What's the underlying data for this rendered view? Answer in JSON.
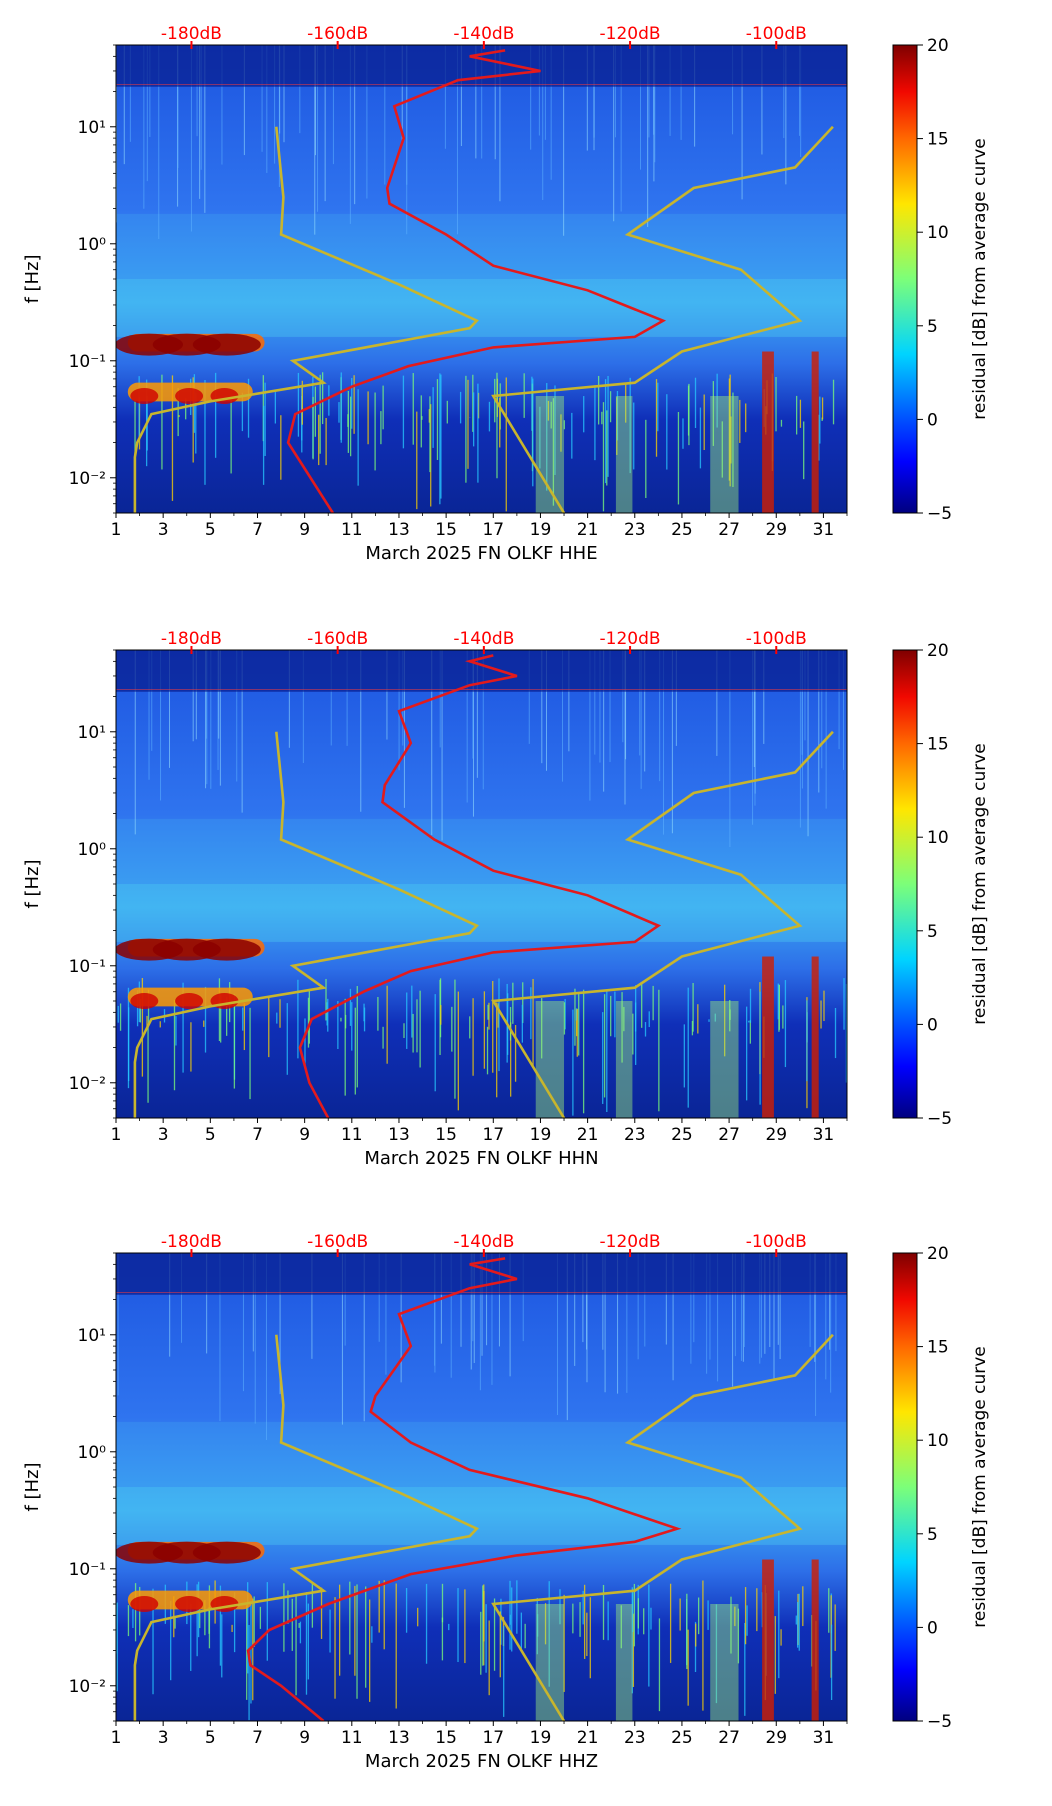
{
  "colors": {
    "spectro_bg": "#1f4fd8",
    "noise_model": "#c8b52d",
    "psd_curve": "#e31a1c",
    "top_axis_text": "#ff0000",
    "axis_text": "#000000"
  },
  "chart_data": [
    {
      "type": "heatmap",
      "channel": "HHE",
      "xlabel": "March 2025 FN OLKF  HHE",
      "ylabel": "f [Hz]",
      "xticks": [
        "1",
        "3",
        "5",
        "7",
        "9",
        "11",
        "13",
        "15",
        "17",
        "19",
        "21",
        "23",
        "25",
        "27",
        "29",
        "31"
      ],
      "xlim": [
        1,
        32
      ],
      "yticks": [
        {
          "value": 0.01,
          "label": "10⁻²"
        },
        {
          "value": 0.1,
          "label": "10⁻¹"
        },
        {
          "value": 1,
          "label": "10⁰"
        },
        {
          "value": 10,
          "label": "10¹"
        }
      ],
      "ylim": [
        0.005,
        50
      ],
      "top_ticks": [
        {
          "x": 4.2,
          "label": "-180dB"
        },
        {
          "x": 10.4,
          "label": "-160dB"
        },
        {
          "x": 16.6,
          "label": "-140dB"
        },
        {
          "x": 22.8,
          "label": "-120dB"
        },
        {
          "x": 29.0,
          "label": "-100dB"
        }
      ],
      "colorbar": {
        "label": "residual [dB] from average curve",
        "min": -5,
        "max": 20,
        "ticks": [
          "-5",
          "0",
          "5",
          "10",
          "15",
          "20"
        ]
      },
      "noise_model_low": [
        [
          1.8,
          0.005
        ],
        [
          1.8,
          0.015
        ],
        [
          1.9,
          0.02
        ],
        [
          2.5,
          0.035
        ],
        [
          5,
          0.045
        ],
        [
          9.8,
          0.065
        ],
        [
          8.5,
          0.1
        ],
        [
          16,
          0.19
        ],
        [
          16.3,
          0.22
        ],
        [
          13,
          0.45
        ],
        [
          8,
          1.2
        ],
        [
          8.1,
          2.5
        ],
        [
          7.8,
          10
        ]
      ],
      "noise_model_high": [
        [
          20,
          0.005
        ],
        [
          17,
          0.05
        ],
        [
          23,
          0.065
        ],
        [
          25,
          0.12
        ],
        [
          30,
          0.22
        ],
        [
          27.5,
          0.6
        ],
        [
          22.7,
          1.2
        ],
        [
          25.5,
          3
        ],
        [
          29.8,
          4.5
        ],
        [
          31.4,
          10
        ]
      ],
      "psd_curve": [
        [
          10.2,
          0.005
        ],
        [
          9,
          0.012
        ],
        [
          8.3,
          0.02
        ],
        [
          8.6,
          0.035
        ],
        [
          11,
          0.06
        ],
        [
          13.4,
          0.09
        ],
        [
          17,
          0.13
        ],
        [
          23,
          0.16
        ],
        [
          24.2,
          0.22
        ],
        [
          21,
          0.4
        ],
        [
          17,
          0.65
        ],
        [
          15,
          1.2
        ],
        [
          12.6,
          2.2
        ],
        [
          12.5,
          3
        ],
        [
          13.2,
          8
        ],
        [
          12.8,
          15
        ],
        [
          15.5,
          25
        ],
        [
          19,
          30
        ],
        [
          16,
          40
        ],
        [
          17.5,
          45
        ]
      ]
    },
    {
      "type": "heatmap",
      "channel": "HHN",
      "xlabel": "March 2025 FN OLKF  HHN",
      "ylabel": "f [Hz]",
      "xticks": [
        "1",
        "3",
        "5",
        "7",
        "9",
        "11",
        "13",
        "15",
        "17",
        "19",
        "21",
        "23",
        "25",
        "27",
        "29",
        "31"
      ],
      "xlim": [
        1,
        32
      ],
      "yticks": [
        {
          "value": 0.01,
          "label": "10⁻²"
        },
        {
          "value": 0.1,
          "label": "10⁻¹"
        },
        {
          "value": 1,
          "label": "10⁰"
        },
        {
          "value": 10,
          "label": "10¹"
        }
      ],
      "ylim": [
        0.005,
        50
      ],
      "top_ticks": [
        {
          "x": 4.2,
          "label": "-180dB"
        },
        {
          "x": 10.4,
          "label": "-160dB"
        },
        {
          "x": 16.6,
          "label": "-140dB"
        },
        {
          "x": 22.8,
          "label": "-120dB"
        },
        {
          "x": 29.0,
          "label": "-100dB"
        }
      ],
      "colorbar": {
        "label": "residual [dB] from average curve",
        "min": -5,
        "max": 20,
        "ticks": [
          "-5",
          "0",
          "5",
          "10",
          "15",
          "20"
        ]
      },
      "noise_model_low": [
        [
          1.8,
          0.005
        ],
        [
          1.8,
          0.015
        ],
        [
          1.9,
          0.02
        ],
        [
          2.5,
          0.035
        ],
        [
          5,
          0.045
        ],
        [
          9.8,
          0.065
        ],
        [
          8.5,
          0.1
        ],
        [
          16,
          0.19
        ],
        [
          16.3,
          0.22
        ],
        [
          13,
          0.45
        ],
        [
          8,
          1.2
        ],
        [
          8.1,
          2.5
        ],
        [
          7.8,
          10
        ]
      ],
      "noise_model_high": [
        [
          20,
          0.005
        ],
        [
          17,
          0.05
        ],
        [
          23,
          0.065
        ],
        [
          25,
          0.12
        ],
        [
          30,
          0.22
        ],
        [
          27.5,
          0.6
        ],
        [
          22.7,
          1.2
        ],
        [
          25.5,
          3
        ],
        [
          29.8,
          4.5
        ],
        [
          31.4,
          10
        ]
      ],
      "psd_curve": [
        [
          10.0,
          0.005
        ],
        [
          9.2,
          0.01
        ],
        [
          8.8,
          0.02
        ],
        [
          9.3,
          0.035
        ],
        [
          11.5,
          0.06
        ],
        [
          13.5,
          0.09
        ],
        [
          17,
          0.13
        ],
        [
          23,
          0.16
        ],
        [
          24.0,
          0.22
        ],
        [
          21,
          0.4
        ],
        [
          17,
          0.65
        ],
        [
          14.5,
          1.2
        ],
        [
          12.3,
          2.5
        ],
        [
          12.4,
          3.5
        ],
        [
          13.5,
          8
        ],
        [
          13,
          15
        ],
        [
          16,
          25
        ],
        [
          18,
          30
        ],
        [
          16,
          40
        ],
        [
          17,
          45
        ]
      ]
    },
    {
      "type": "heatmap",
      "channel": "HHZ",
      "xlabel": "March 2025 FN OLKF  HHZ",
      "ylabel": "f [Hz]",
      "xticks": [
        "1",
        "3",
        "5",
        "7",
        "9",
        "11",
        "13",
        "15",
        "17",
        "19",
        "21",
        "23",
        "25",
        "27",
        "29",
        "31"
      ],
      "xlim": [
        1,
        32
      ],
      "yticks": [
        {
          "value": 0.01,
          "label": "10⁻²"
        },
        {
          "value": 0.1,
          "label": "10⁻¹"
        },
        {
          "value": 1,
          "label": "10⁰"
        },
        {
          "value": 10,
          "label": "10¹"
        }
      ],
      "ylim": [
        0.005,
        50
      ],
      "top_ticks": [
        {
          "x": 4.2,
          "label": "-180dB"
        },
        {
          "x": 10.4,
          "label": "-160dB"
        },
        {
          "x": 16.6,
          "label": "-140dB"
        },
        {
          "x": 22.8,
          "label": "-120dB"
        },
        {
          "x": 29.0,
          "label": "-100dB"
        }
      ],
      "colorbar": {
        "label": "residual [dB] from average curve",
        "min": -5,
        "max": 20,
        "ticks": [
          "-5",
          "0",
          "5",
          "10",
          "15",
          "20"
        ]
      },
      "noise_model_low": [
        [
          1.8,
          0.005
        ],
        [
          1.8,
          0.015
        ],
        [
          1.9,
          0.02
        ],
        [
          2.5,
          0.035
        ],
        [
          5,
          0.045
        ],
        [
          9.8,
          0.065
        ],
        [
          8.5,
          0.1
        ],
        [
          16,
          0.19
        ],
        [
          16.3,
          0.22
        ],
        [
          13,
          0.45
        ],
        [
          8,
          1.2
        ],
        [
          8.1,
          2.5
        ],
        [
          7.8,
          10
        ]
      ],
      "noise_model_high": [
        [
          20,
          0.005
        ],
        [
          17,
          0.05
        ],
        [
          23,
          0.065
        ],
        [
          25,
          0.12
        ],
        [
          30,
          0.22
        ],
        [
          27.5,
          0.6
        ],
        [
          22.7,
          1.2
        ],
        [
          25.5,
          3
        ],
        [
          29.8,
          4.5
        ],
        [
          31.4,
          10
        ]
      ],
      "psd_curve": [
        [
          9.8,
          0.005
        ],
        [
          8,
          0.01
        ],
        [
          6.7,
          0.015
        ],
        [
          6.6,
          0.02
        ],
        [
          7.5,
          0.03
        ],
        [
          10,
          0.05
        ],
        [
          13.5,
          0.09
        ],
        [
          18,
          0.13
        ],
        [
          23,
          0.17
        ],
        [
          24.8,
          0.22
        ],
        [
          21,
          0.4
        ],
        [
          16,
          0.7
        ],
        [
          13.5,
          1.2
        ],
        [
          11.8,
          2.2
        ],
        [
          12,
          3
        ],
        [
          13.5,
          8
        ],
        [
          13,
          15
        ],
        [
          16,
          25
        ],
        [
          18,
          30
        ],
        [
          16,
          40
        ],
        [
          17.5,
          45
        ]
      ]
    }
  ]
}
